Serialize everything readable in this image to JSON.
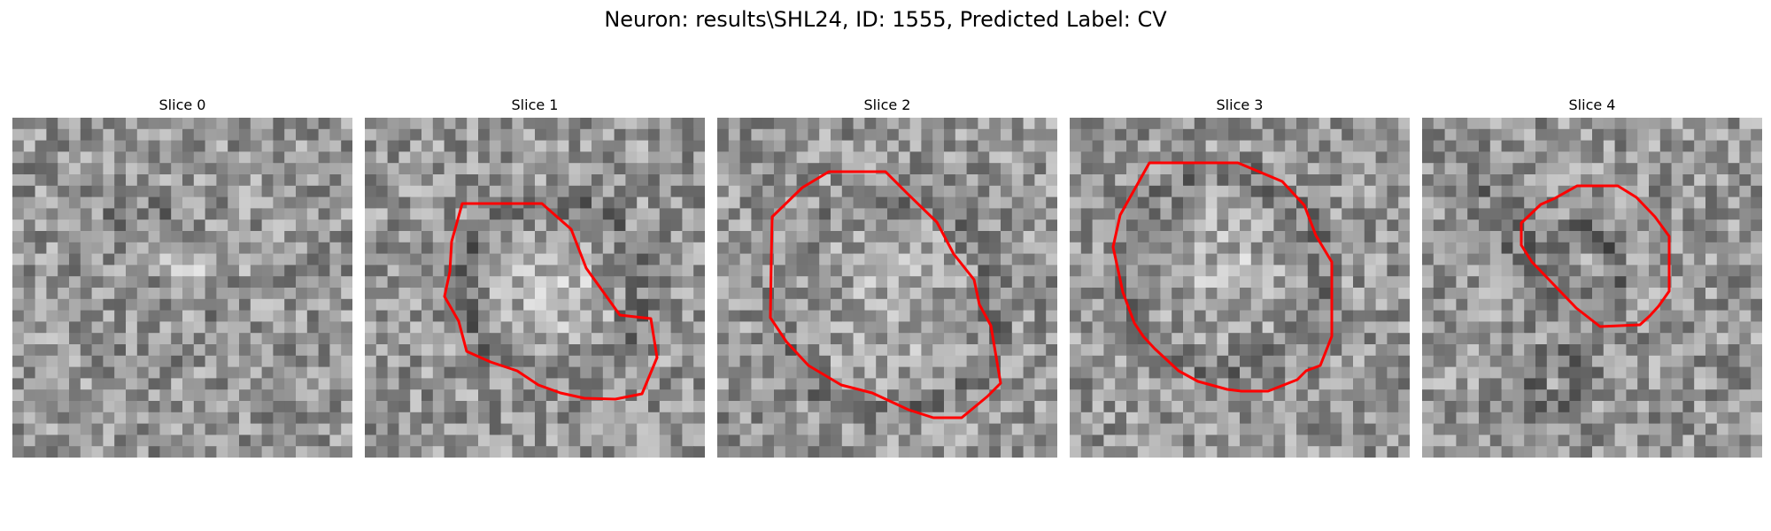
{
  "figure": {
    "title": "Neuron: results\\SHL24, ID: 1555, Predicted Label: CV",
    "contour_color": "#ff0000"
  },
  "slices": [
    {
      "title": "Slice 0",
      "has_contour": false
    },
    {
      "title": "Slice 1",
      "has_contour": true
    },
    {
      "title": "Slice 2",
      "has_contour": true
    },
    {
      "title": "Slice 3",
      "has_contour": true
    },
    {
      "title": "Slice 4",
      "has_contour": true
    }
  ]
}
